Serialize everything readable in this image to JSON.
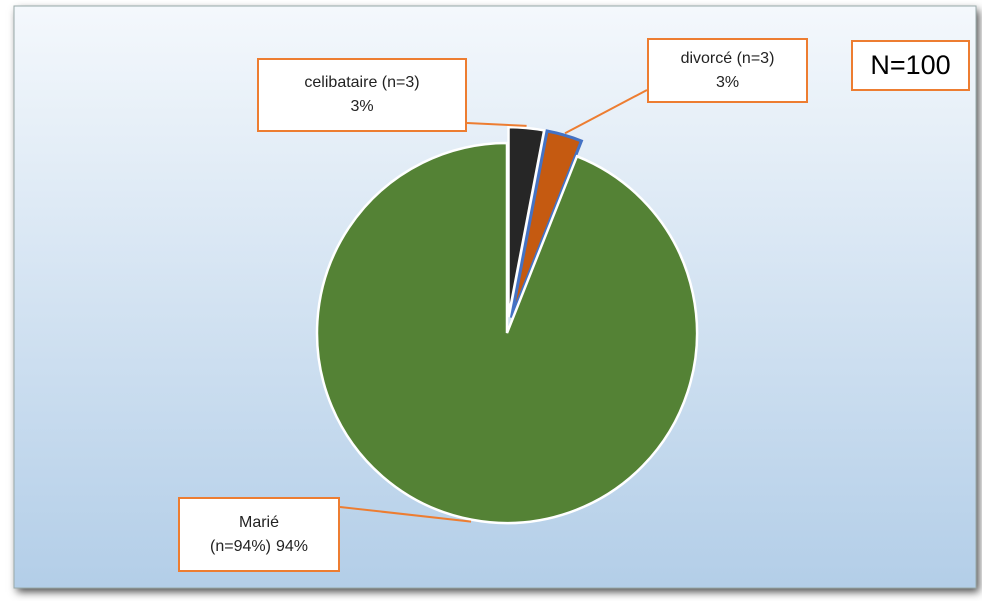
{
  "chart_data": {
    "type": "pie",
    "categories": [
      "celibataire (n=3)",
      "divorcé (n=3)",
      "Marié\n(n=94%)"
    ],
    "values": [
      3,
      3,
      94
    ],
    "value_labels": [
      "3%",
      "3%",
      "94%"
    ],
    "colors": [
      "#262626",
      "#c55a11",
      "#548235"
    ],
    "annotation": "N=100"
  }
}
